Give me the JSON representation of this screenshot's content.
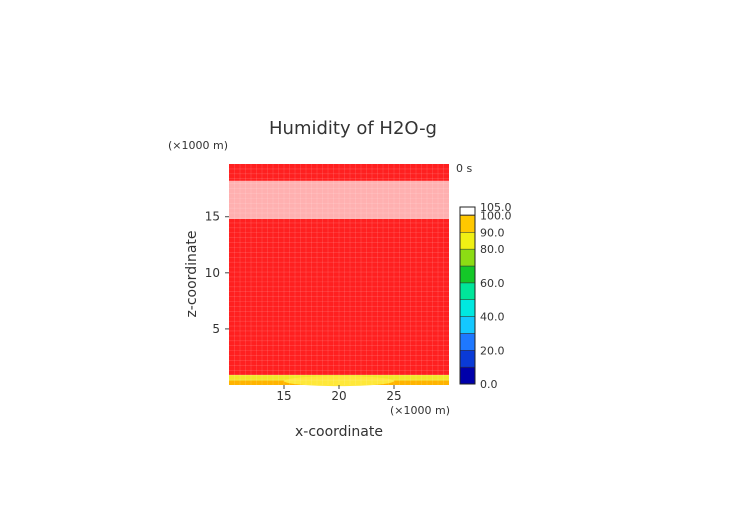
{
  "chart_data": {
    "type": "heatmap",
    "title": "Humidity of H2O-g",
    "time_label": "0 s",
    "xlabel": "x-coordinate",
    "ylabel": "z-coordinate",
    "x_unit": "(×1000 m)",
    "y_unit": "(×1000 m)",
    "xlim": [
      10,
      30
    ],
    "ylim": [
      0,
      19.7
    ],
    "x_ticks": [
      15,
      20,
      25
    ],
    "y_ticks": [
      5,
      10,
      15
    ],
    "bands": [
      {
        "z_from": 0,
        "z_to": 0.4,
        "humidity": "80.0-90.0"
      },
      {
        "z_from": 0.4,
        "z_to": 0.9,
        "humidity": "90.0-100.0"
      },
      {
        "z_from": 0.9,
        "z_to": 14.8,
        "humidity": "100.0-105.0"
      },
      {
        "z_from": 14.8,
        "z_to": 18.2,
        "humidity": "105.0"
      },
      {
        "z_from": 18.2,
        "z_to": 19.7,
        "humidity": "100.0-105.0"
      }
    ],
    "colorbar": {
      "min": 0,
      "max": 105,
      "tick_labels": [
        "105.0",
        "100.0",
        "90.0",
        "80.0",
        "60.0",
        "40.0",
        "20.0",
        "0.0"
      ],
      "tick_values": [
        105,
        100,
        90,
        80,
        60,
        40,
        20,
        0
      ],
      "colors": [
        "#0000aa",
        "#0a3ad6",
        "#1e78ff",
        "#14c8ff",
        "#00e8e0",
        "#00e69a",
        "#14c828",
        "#8cdc14",
        "#f0f014",
        "#ffc800",
        "#ff8c00",
        "#ff5000",
        "#ff1e1e",
        "#ffffff"
      ]
    }
  }
}
